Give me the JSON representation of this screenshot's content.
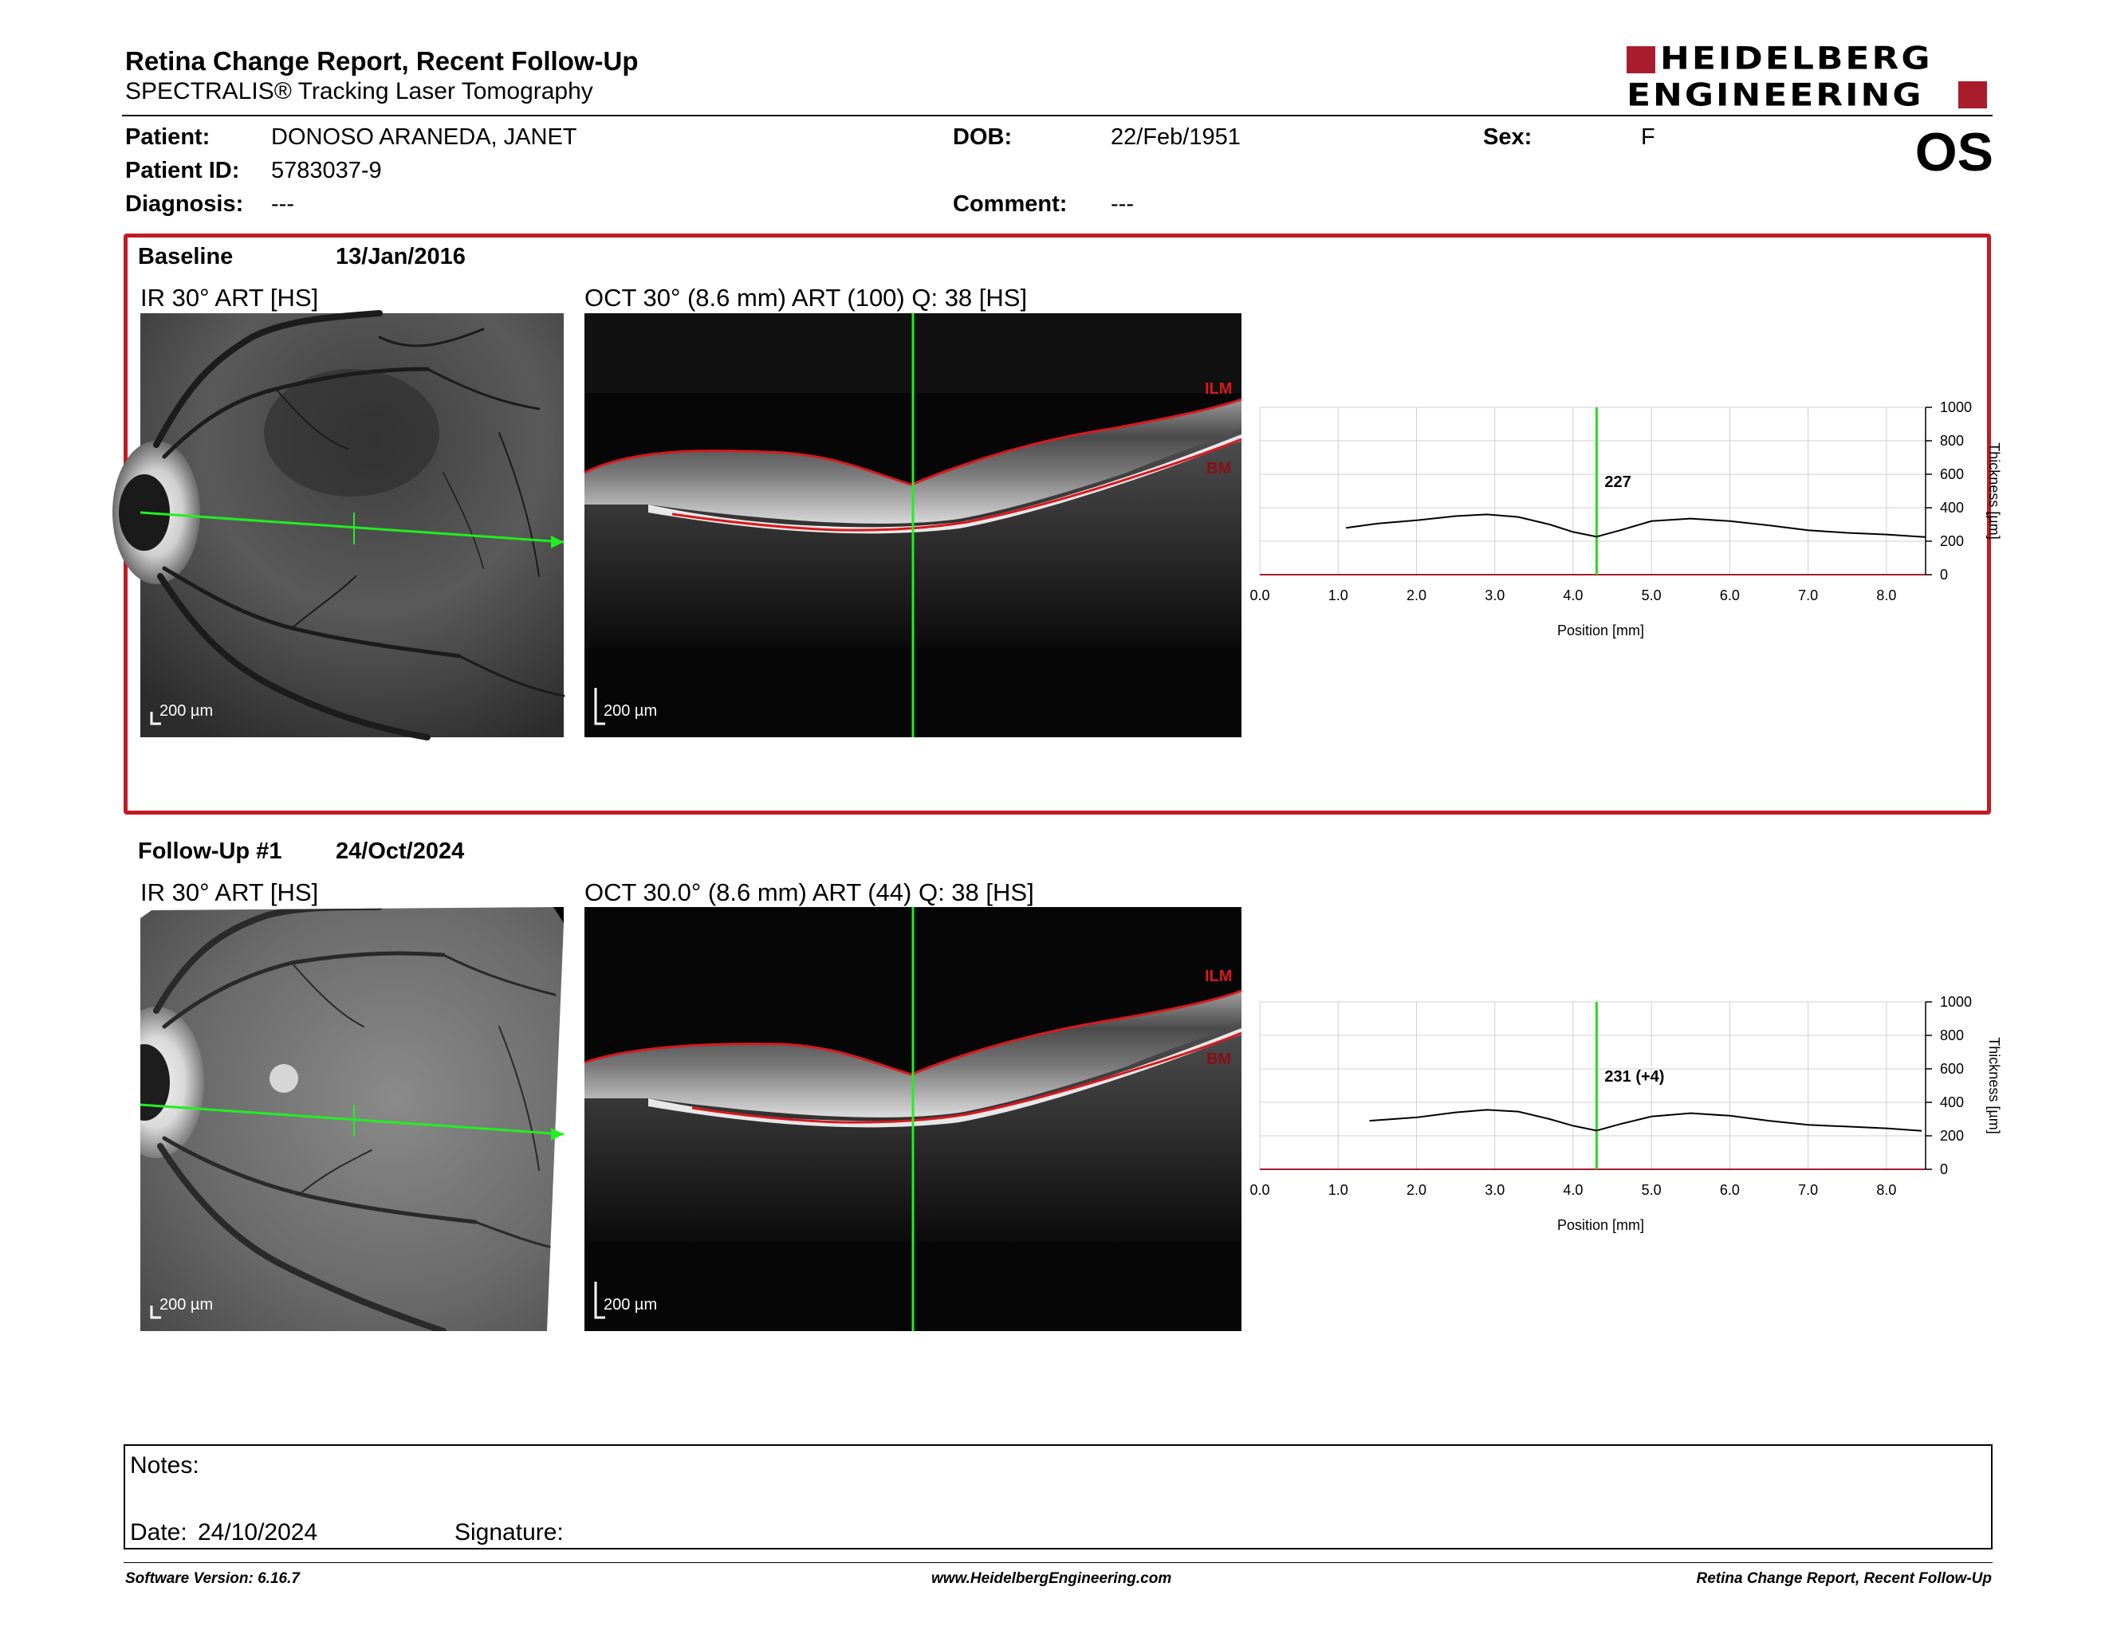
{
  "header": {
    "title": "Retina Change Report, Recent Follow-Up",
    "subtitle": "SPECTRALIS® Tracking Laser Tomography",
    "eye": "OS"
  },
  "logo": {
    "line1": "HEIDELBERG",
    "line2": "ENGINEERING",
    "color": "#a81c2e"
  },
  "patient": {
    "patient_label": "Patient:",
    "patient_value": "DONOSO ARANEDA, JANET",
    "dob_label": "DOB:",
    "dob_value": "22/Feb/1951",
    "sex_label": "Sex:",
    "sex_value": "F",
    "id_label": "Patient ID:",
    "id_value": "5783037-9",
    "diagnosis_label": "Diagnosis:",
    "diagnosis_value": "---",
    "comment_label": "Comment:",
    "comment_value": "---"
  },
  "baseline": {
    "label": "Baseline",
    "date": "13/Jan/2016",
    "ir_title": "IR 30° ART [HS]",
    "oct_title": "OCT 30° (8.6 mm) ART (100) Q: 38 [HS]",
    "scale_ir": "200 µm",
    "scale_oct": "200 µm",
    "ilm": "ILM",
    "bm": "BM",
    "frame_color": "#c21a24"
  },
  "followup": {
    "label": "Follow-Up #1",
    "date": "24/Oct/2024",
    "ir_title": "IR 30° ART [HS]",
    "oct_title": "OCT 30.0° (8.6 mm) ART (44) Q: 38 [HS]",
    "scale_ir": "200 µm",
    "scale_oct": "200 µm",
    "ilm": "ILM",
    "bm": "BM"
  },
  "chart_data": [
    {
      "type": "line",
      "xlabel": "Position [mm]",
      "ylabel": "Thickness [µm]",
      "xlim": [
        0,
        8.5
      ],
      "ylim": [
        0,
        1000
      ],
      "x_ticks": [
        "0.0",
        "1.0",
        "2.0",
        "3.0",
        "4.0",
        "5.0",
        "6.0",
        "7.0",
        "8.0"
      ],
      "y_ticks": [
        "0",
        "200",
        "400",
        "600",
        "800",
        "1000"
      ],
      "grid": true,
      "cursor_x": 4.3,
      "cursor_label": "227",
      "cursor_color": "#22dd22",
      "series": [
        {
          "x": [
            1.1,
            1.5,
            2.0,
            2.5,
            2.9,
            3.3,
            3.7,
            4.0,
            4.3,
            4.6,
            5.0,
            5.5,
            6.0,
            6.5,
            7.0,
            7.5,
            8.0,
            8.5
          ],
          "y": [
            280,
            305,
            325,
            350,
            360,
            345,
            300,
            255,
            227,
            265,
            320,
            335,
            320,
            295,
            265,
            250,
            240,
            225
          ]
        }
      ]
    },
    {
      "type": "line",
      "xlabel": "Position [mm]",
      "ylabel": "Thickness [µm]",
      "xlim": [
        0,
        8.5
      ],
      "ylim": [
        0,
        1000
      ],
      "x_ticks": [
        "0.0",
        "1.0",
        "2.0",
        "3.0",
        "4.0",
        "5.0",
        "6.0",
        "7.0",
        "8.0"
      ],
      "y_ticks": [
        "0",
        "200",
        "400",
        "600",
        "800",
        "1000"
      ],
      "grid": true,
      "cursor_x": 4.3,
      "cursor_label": "231 (+4)",
      "cursor_color": "#22dd22",
      "series": [
        {
          "x": [
            1.4,
            2.0,
            2.5,
            2.9,
            3.3,
            3.7,
            4.0,
            4.3,
            4.6,
            5.0,
            5.5,
            6.0,
            6.5,
            7.0,
            7.5,
            8.0,
            8.45
          ],
          "y": [
            290,
            310,
            340,
            355,
            345,
            300,
            260,
            231,
            270,
            315,
            335,
            320,
            290,
            265,
            255,
            245,
            230
          ]
        }
      ]
    }
  ],
  "notes": {
    "notes_label": "Notes:",
    "date_label": "Date:",
    "date_value": "24/10/2024",
    "signature_label": "Signature:"
  },
  "footer": {
    "software": "Software Version: 6.16.7",
    "website": "www.HeidelbergEngineering.com",
    "report": "Retina Change Report, Recent Follow-Up"
  }
}
